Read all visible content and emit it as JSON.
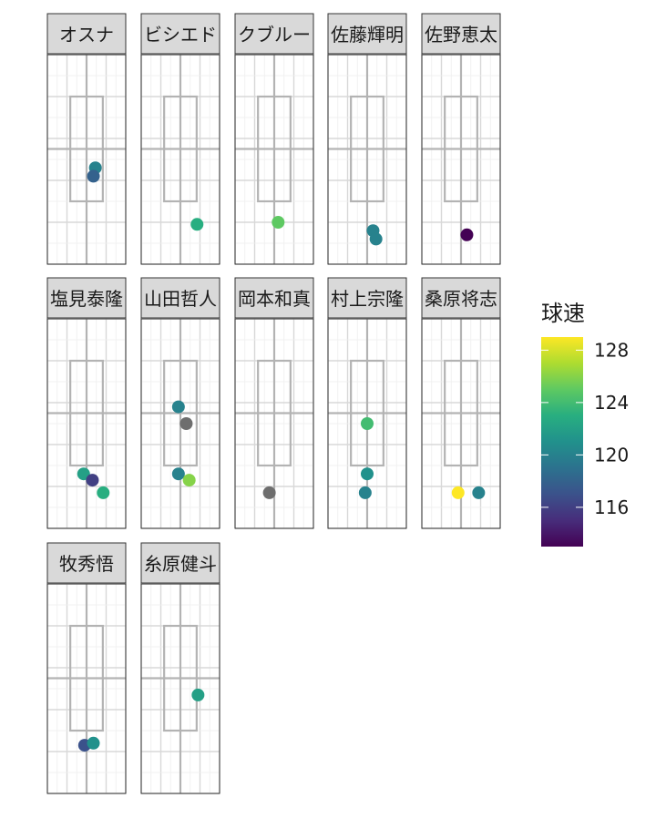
{
  "chart_data": {
    "type": "scatter",
    "facet_order": [
      "オスナ",
      "ビシエド",
      "クブルー",
      "佐藤輝明",
      "佐野恵太",
      "塩見泰隆",
      "山田哲人",
      "岡本和真",
      "村上宗隆",
      "桑原将志",
      "牧秀悟",
      "糸原健斗"
    ],
    "x_range": [
      -2,
      2
    ],
    "y_range": [
      0,
      5
    ],
    "strike_zone": {
      "x": [
        -0.83,
        0.83
      ],
      "y": [
        1.5,
        4.0
      ]
    },
    "grid": true,
    "legend": {
      "title": "球速",
      "position": "right",
      "ticks": [
        116,
        120,
        124,
        128
      ],
      "range": [
        113,
        129
      ],
      "colormap": "viridis",
      "na_color": "#6e6e6e"
    },
    "series": [
      {
        "name": "オスナ",
        "points": [
          {
            "x": 0.45,
            "y": 2.3,
            "speed": 120
          },
          {
            "x": 0.35,
            "y": 2.1,
            "speed": 118
          }
        ]
      },
      {
        "name": "ビシエド",
        "points": [
          {
            "x": 0.85,
            "y": 0.95,
            "speed": 123
          }
        ]
      },
      {
        "name": "クブルー",
        "points": [
          {
            "x": 0.2,
            "y": 1.0,
            "speed": 125
          }
        ]
      },
      {
        "name": "佐藤輝明",
        "points": [
          {
            "x": 0.3,
            "y": 0.8,
            "speed": 120
          },
          {
            "x": 0.45,
            "y": 0.6,
            "speed": 120
          }
        ]
      },
      {
        "name": "佐野恵太",
        "points": [
          {
            "x": 0.3,
            "y": 0.7,
            "speed": 113
          }
        ]
      },
      {
        "name": "塩見泰隆",
        "points": [
          {
            "x": -0.15,
            "y": 1.3,
            "speed": 122
          },
          {
            "x": 0.3,
            "y": 1.15,
            "speed": 116
          },
          {
            "x": 0.85,
            "y": 0.85,
            "speed": 123
          }
        ]
      },
      {
        "name": "山田哲人",
        "points": [
          {
            "x": -0.1,
            "y": 2.9,
            "speed": 120
          },
          {
            "x": 0.3,
            "y": 2.5,
            "speed": null
          },
          {
            "x": -0.1,
            "y": 1.3,
            "speed": 120
          },
          {
            "x": 0.45,
            "y": 1.15,
            "speed": 126
          }
        ]
      },
      {
        "name": "岡本和真",
        "points": [
          {
            "x": -0.25,
            "y": 0.85,
            "speed": null
          }
        ]
      },
      {
        "name": "村上宗隆",
        "points": [
          {
            "x": 0.0,
            "y": 2.5,
            "speed": 124
          },
          {
            "x": 0.0,
            "y": 1.3,
            "speed": 121
          },
          {
            "x": -0.1,
            "y": 0.85,
            "speed": 120
          }
        ]
      },
      {
        "name": "桑原将志",
        "points": [
          {
            "x": -0.15,
            "y": 0.85,
            "speed": 129
          },
          {
            "x": 0.9,
            "y": 0.85,
            "speed": 120
          }
        ]
      },
      {
        "name": "牧秀悟",
        "points": [
          {
            "x": -0.1,
            "y": 1.15,
            "speed": 117
          },
          {
            "x": 0.35,
            "y": 1.2,
            "speed": 121
          }
        ]
      },
      {
        "name": "糸原健斗",
        "points": [
          {
            "x": 0.9,
            "y": 2.35,
            "speed": 122
          }
        ]
      }
    ]
  }
}
